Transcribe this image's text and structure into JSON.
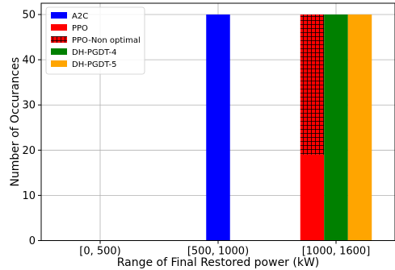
{
  "chart_data": {
    "type": "bar",
    "xlabel": "Range of Final Restored power (kW)",
    "ylabel": "Number of Occurances",
    "categories": [
      "[0, 500)",
      "[500, 1000)",
      "[1000, 1600]"
    ],
    "ylim": [
      0,
      52.5
    ],
    "yticks": [
      0,
      10,
      20,
      30,
      40,
      50
    ],
    "grid": true,
    "legend_position": "top-left",
    "series": [
      {
        "name": "A2C",
        "color": "#0000ff",
        "values": [
          0,
          50,
          0
        ]
      },
      {
        "name": "PPO",
        "color": "#ff0000",
        "values": [
          0,
          0,
          19
        ]
      },
      {
        "name": "PPO-Non optimal",
        "color": "#ff0000",
        "hatch": "#000000",
        "stacked_on": "PPO",
        "values": [
          0,
          0,
          31
        ]
      },
      {
        "name": "DH-PGDT-4",
        "color": "#008000",
        "values": [
          0,
          0,
          50
        ]
      },
      {
        "name": "DH-PGDT-5",
        "color": "#ffa500",
        "values": [
          0,
          0,
          50
        ]
      }
    ]
  }
}
